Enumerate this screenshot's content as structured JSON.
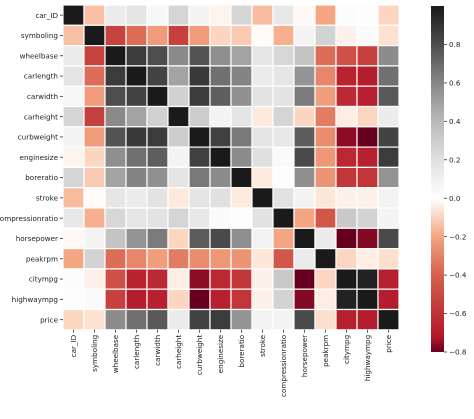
{
  "chart_data": {
    "type": "heatmap",
    "title": "",
    "xlabel": "",
    "ylabel": "",
    "labels": [
      "car_ID",
      "symboling",
      "wheelbase",
      "carlength",
      "carwidth",
      "carheight",
      "curbweight",
      "enginesize",
      "boreratio",
      "stroke",
      "compressionratio",
      "horsepower",
      "peakrpm",
      "citympg",
      "highwaympg",
      "price"
    ],
    "matrix": [
      [
        1.0,
        -0.15,
        0.13,
        0.17,
        0.05,
        0.26,
        0.07,
        -0.03,
        0.26,
        -0.16,
        0.15,
        -0.02,
        -0.2,
        0.02,
        0.01,
        -0.11
      ],
      [
        -0.15,
        1.0,
        -0.53,
        -0.36,
        -0.23,
        -0.54,
        -0.23,
        -0.11,
        -0.13,
        -0.01,
        -0.18,
        0.07,
        0.27,
        -0.04,
        0.03,
        -0.08
      ],
      [
        0.13,
        -0.53,
        1.0,
        0.87,
        0.8,
        0.59,
        0.78,
        0.57,
        0.49,
        0.16,
        0.25,
        0.35,
        -0.36,
        -0.47,
        -0.54,
        0.58
      ],
      [
        0.17,
        -0.36,
        0.87,
        1.0,
        0.84,
        0.49,
        0.88,
        0.68,
        0.61,
        0.13,
        0.16,
        0.55,
        -0.29,
        -0.67,
        -0.7,
        0.68
      ],
      [
        0.05,
        -0.23,
        0.8,
        0.84,
        1.0,
        0.28,
        0.87,
        0.74,
        0.56,
        0.18,
        0.18,
        0.64,
        -0.22,
        -0.64,
        -0.68,
        0.76
      ],
      [
        0.26,
        -0.54,
        0.59,
        0.49,
        0.28,
        1.0,
        0.3,
        0.07,
        0.17,
        -0.06,
        0.26,
        -0.11,
        -0.32,
        -0.05,
        -0.11,
        0.12
      ],
      [
        0.07,
        -0.23,
        0.78,
        0.88,
        0.87,
        0.3,
        1.0,
        0.85,
        0.65,
        0.17,
        0.15,
        0.75,
        -0.27,
        -0.76,
        -0.8,
        0.84
      ],
      [
        -0.03,
        -0.11,
        0.57,
        0.68,
        0.74,
        0.07,
        0.85,
        1.0,
        0.58,
        0.2,
        0.03,
        0.81,
        -0.24,
        -0.65,
        -0.68,
        0.87
      ],
      [
        0.26,
        -0.13,
        0.49,
        0.61,
        0.56,
        0.17,
        0.65,
        0.58,
        1.0,
        -0.06,
        0.01,
        0.57,
        -0.25,
        -0.58,
        -0.59,
        0.55
      ],
      [
        -0.16,
        -0.01,
        0.16,
        0.13,
        0.18,
        -0.06,
        0.17,
        0.2,
        -0.06,
        1.0,
        0.19,
        0.08,
        -0.07,
        -0.04,
        -0.04,
        0.08
      ],
      [
        0.15,
        -0.18,
        0.25,
        0.16,
        0.18,
        0.26,
        0.15,
        0.03,
        0.01,
        0.19,
        1.0,
        -0.2,
        -0.44,
        0.32,
        0.27,
        0.07
      ],
      [
        -0.02,
        0.07,
        0.35,
        0.55,
        0.64,
        -0.11,
        0.75,
        0.81,
        0.57,
        0.08,
        -0.2,
        1.0,
        0.13,
        -0.8,
        -0.77,
        0.81
      ],
      [
        -0.2,
        0.27,
        -0.36,
        -0.29,
        -0.22,
        -0.32,
        -0.27,
        -0.24,
        -0.25,
        -0.07,
        -0.44,
        0.13,
        1.0,
        -0.11,
        -0.05,
        -0.09
      ],
      [
        0.02,
        -0.04,
        -0.47,
        -0.67,
        -0.64,
        -0.05,
        -0.76,
        -0.65,
        -0.58,
        -0.04,
        0.32,
        -0.8,
        -0.11,
        1.0,
        0.97,
        -0.69
      ],
      [
        0.01,
        0.03,
        -0.54,
        -0.7,
        -0.68,
        -0.11,
        -0.8,
        -0.68,
        -0.59,
        -0.04,
        0.27,
        -0.77,
        -0.05,
        0.97,
        1.0,
        -0.7
      ],
      [
        -0.11,
        -0.08,
        0.58,
        0.68,
        0.76,
        0.12,
        0.84,
        0.87,
        0.55,
        0.08,
        0.07,
        0.81,
        -0.09,
        -0.69,
        -0.7,
        1.0
      ]
    ],
    "colorbar": {
      "vmin": -0.8,
      "vmax": 1.0,
      "ticks": [
        -0.8,
        -0.6,
        -0.4,
        -0.2,
        0.0,
        0.2,
        0.4,
        0.6,
        0.8
      ]
    },
    "colors": {
      "negative_end": "#67001f",
      "center": "#ffffff",
      "positive_end": "#1a1a1a",
      "cell_border": "#ffffff"
    },
    "legend": "colorbar-right",
    "grid": false
  }
}
